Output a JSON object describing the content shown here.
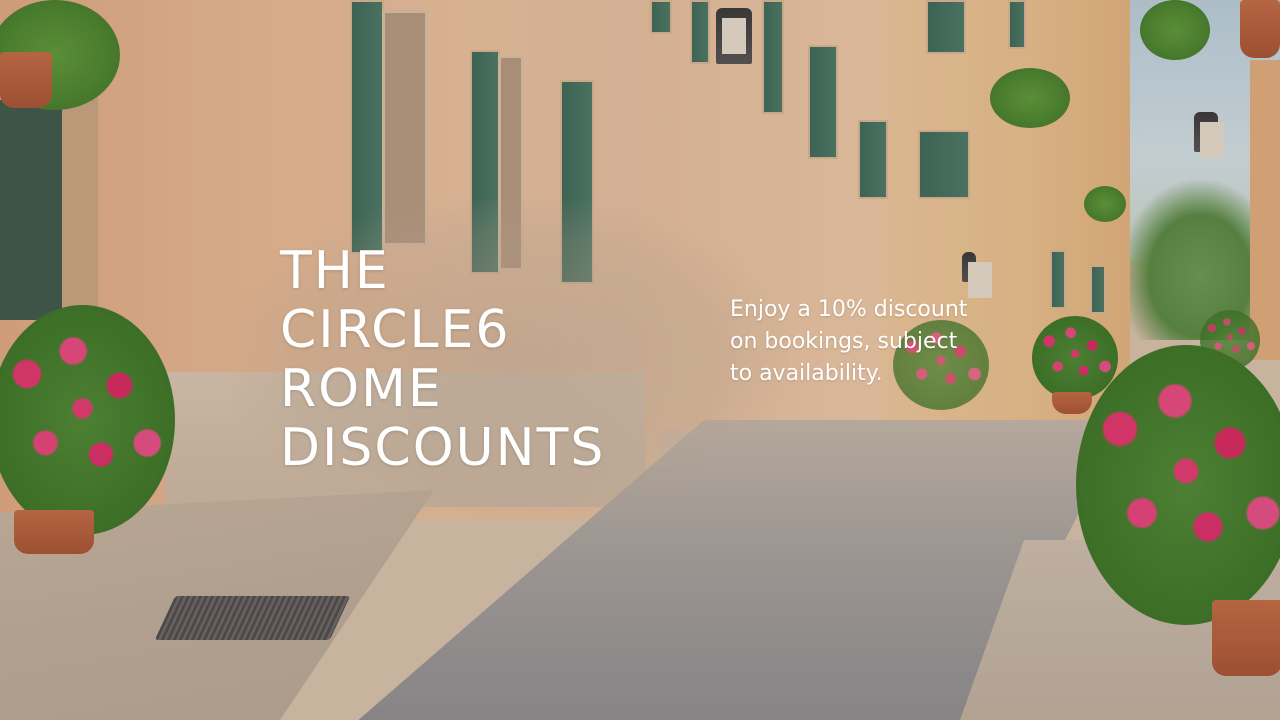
{
  "banner": {
    "headline_lines": [
      "THE",
      "CIRCLE6",
      "ROME",
      "DISCOUNTS"
    ],
    "body_text": "Enjoy a 10% discount on bookings, subject to availability."
  },
  "background": {
    "scene": "sunlit cobblestone street lined with peach buildings, green shutters and pink flower pots"
  }
}
